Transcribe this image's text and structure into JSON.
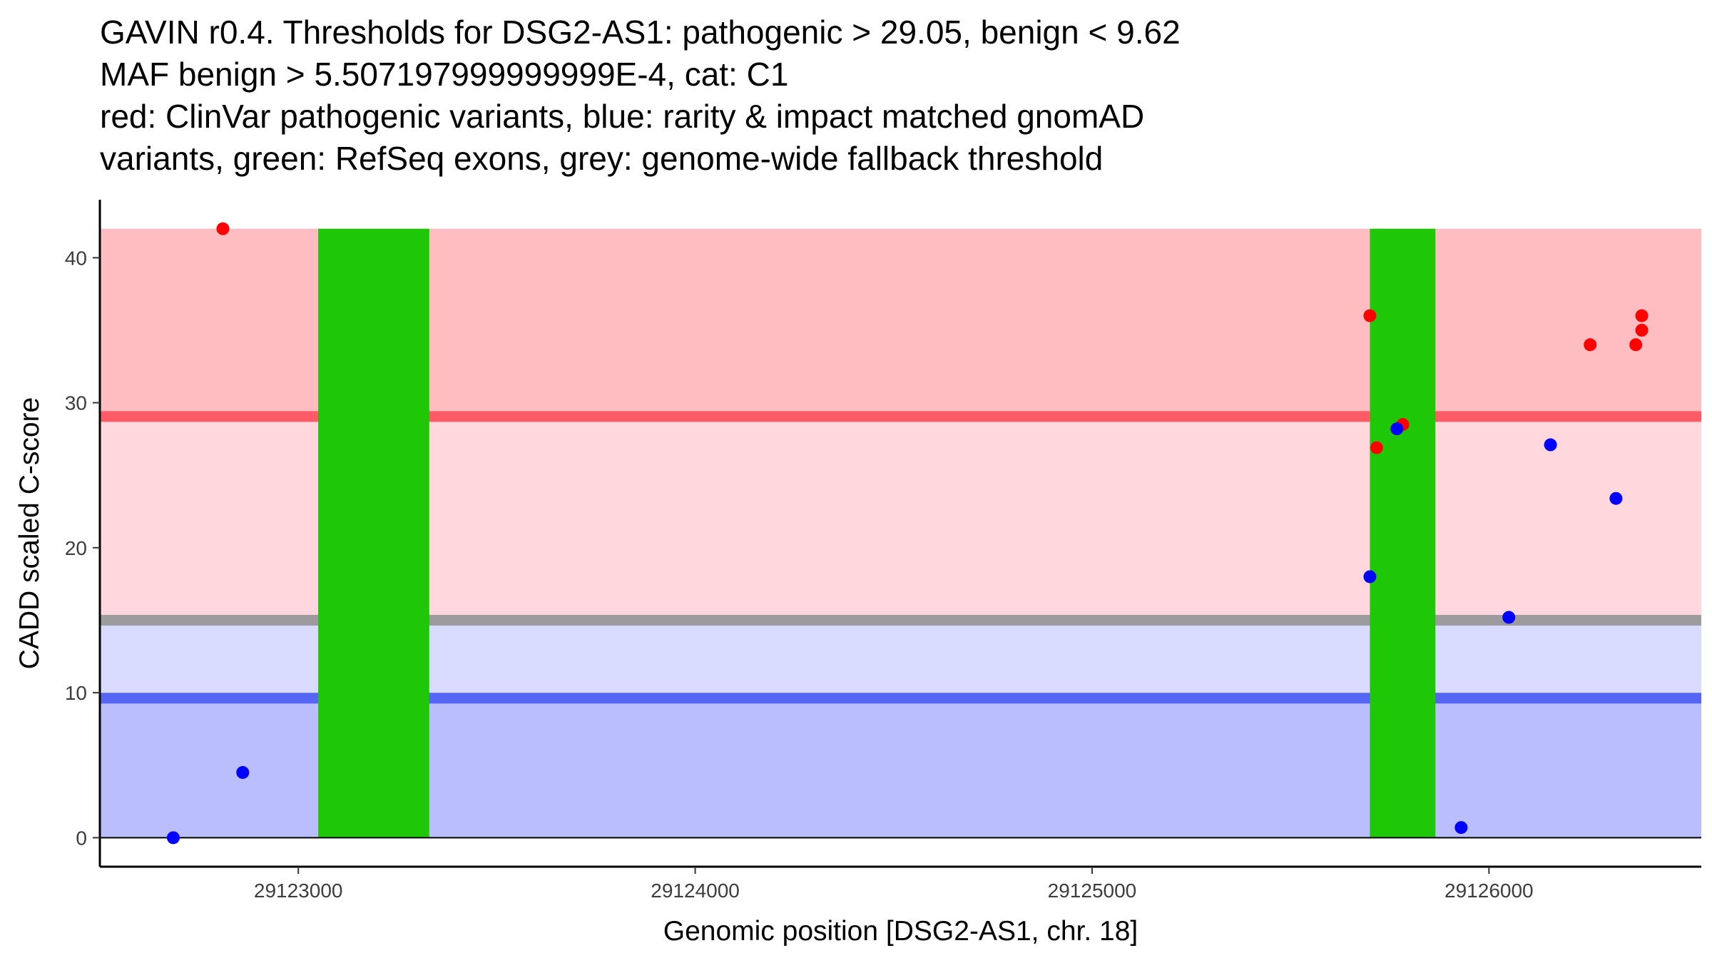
{
  "chart_data": {
    "type": "scatter",
    "title_lines": [
      "GAVIN r0.4. Thresholds for DSG2-AS1: pathogenic > 29.05, benign < 9.62",
      "MAF benign > 5.507197999999999E-4, cat: C1",
      "red: ClinVar pathogenic variants, blue: rarity & impact matched gnomAD",
      "variants, green: RefSeq exons, grey: genome-wide fallback threshold"
    ],
    "xlabel": "Genomic position [DSG2-AS1, chr. 18]",
    "ylabel": "CADD scaled C-score",
    "xlim": [
      29122500,
      29126535
    ],
    "ylim": [
      -2,
      44
    ],
    "x_ticks": [
      29123000,
      29124000,
      29125000,
      29126000
    ],
    "x_tick_labels": [
      "29123000",
      "29124000",
      "29125000",
      "29126000"
    ],
    "y_ticks": [
      0,
      10,
      20,
      30,
      40
    ],
    "y_tick_labels": [
      "0",
      "10",
      "20",
      "30",
      "40"
    ],
    "thresholds": {
      "pathogenic": 29.05,
      "benign": 9.62,
      "genome_wide_fallback": 15.0
    },
    "bands": [
      {
        "name": "pathogenic-zone",
        "y_from": 29.05,
        "y_to": 42,
        "color": "#ffbcc1"
      },
      {
        "name": "upper-mid-zone",
        "y_from": 15.0,
        "y_to": 29.05,
        "color": "#ffd7dc"
      },
      {
        "name": "lower-mid-zone",
        "y_from": 9.62,
        "y_to": 15.0,
        "color": "#d8dafe"
      },
      {
        "name": "benign-zone",
        "y_from": 0,
        "y_to": 9.62,
        "color": "#babefd"
      }
    ],
    "threshold_lines": [
      {
        "name": "pathogenic-threshold",
        "y": 29.05,
        "color": "#ff5b66"
      },
      {
        "name": "fallback-threshold",
        "y": 15.0,
        "color": "#9e9b9e"
      },
      {
        "name": "benign-threshold",
        "y": 9.62,
        "color": "#5566f4"
      }
    ],
    "exons": [
      {
        "x_start": 29123050,
        "x_end": 29123330,
        "y_from": 0,
        "y_to": 42,
        "color": "#1ec806"
      },
      {
        "x_start": 29125700,
        "x_end": 29125865,
        "y_from": 0,
        "y_to": 42,
        "color": "#1ec806"
      }
    ],
    "series": [
      {
        "name": "ClinVar pathogenic variants",
        "color": "#ff0000",
        "points": [
          {
            "x": 29122810,
            "y": 42
          },
          {
            "x": 29125700,
            "y": 36
          },
          {
            "x": 29125717,
            "y": 26.9
          },
          {
            "x": 29125783,
            "y": 28.5
          },
          {
            "x": 29126255,
            "y": 34
          },
          {
            "x": 29126370,
            "y": 34
          },
          {
            "x": 29126385,
            "y": 35
          },
          {
            "x": 29126385,
            "y": 36
          }
        ]
      },
      {
        "name": "rarity & impact matched gnomAD variants",
        "color": "#0000ff",
        "points": [
          {
            "x": 29122685,
            "y": 0
          },
          {
            "x": 29122860,
            "y": 4.5
          },
          {
            "x": 29125700,
            "y": 18
          },
          {
            "x": 29125768,
            "y": 28.2
          },
          {
            "x": 29125930,
            "y": 0.7
          },
          {
            "x": 29126050,
            "y": 15.2
          },
          {
            "x": 29126155,
            "y": 27.1
          },
          {
            "x": 29126320,
            "y": 23.4
          }
        ]
      }
    ]
  }
}
